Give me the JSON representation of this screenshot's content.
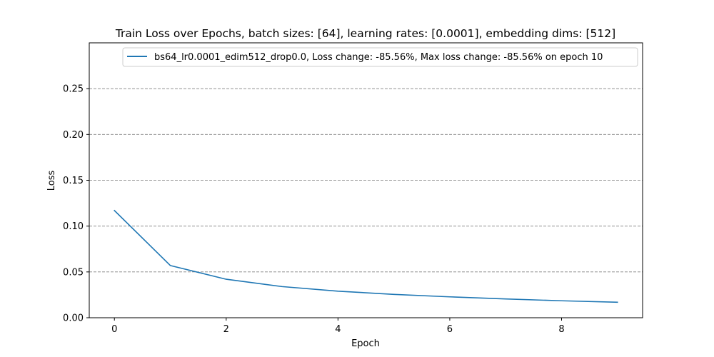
{
  "chart_data": {
    "type": "line",
    "title": "Train Loss over Epochs, batch sizes: [64], learning rates: [0.0001], embedding dims: [512]",
    "xlabel": "Epoch",
    "ylabel": "Loss",
    "xlim": [
      -0.45,
      9.45
    ],
    "ylim": [
      0.0,
      0.3
    ],
    "xticks": [
      0,
      2,
      4,
      6,
      8
    ],
    "xtick_labels": [
      "0",
      "2",
      "4",
      "6",
      "8"
    ],
    "yticks": [
      0.0,
      0.05,
      0.1,
      0.15,
      0.2,
      0.25
    ],
    "ytick_labels": [
      "0.00",
      "0.05",
      "0.10",
      "0.15",
      "0.20",
      "0.25"
    ],
    "grid": {
      "axis": "y",
      "style": "dashed",
      "color": "#808080"
    },
    "legend_position": "top-right",
    "series": [
      {
        "name": "bs64_lr0.0001_edim512_drop0.0, Loss change: -85.56%, Max loss change: -85.56% on epoch 10",
        "color": "#1f77b4",
        "x": [
          0,
          1,
          2,
          3,
          4,
          5,
          6,
          7,
          8,
          9
        ],
        "y": [
          0.117,
          0.057,
          0.042,
          0.034,
          0.029,
          0.0255,
          0.0228,
          0.0205,
          0.0185,
          0.0169
        ]
      }
    ]
  }
}
